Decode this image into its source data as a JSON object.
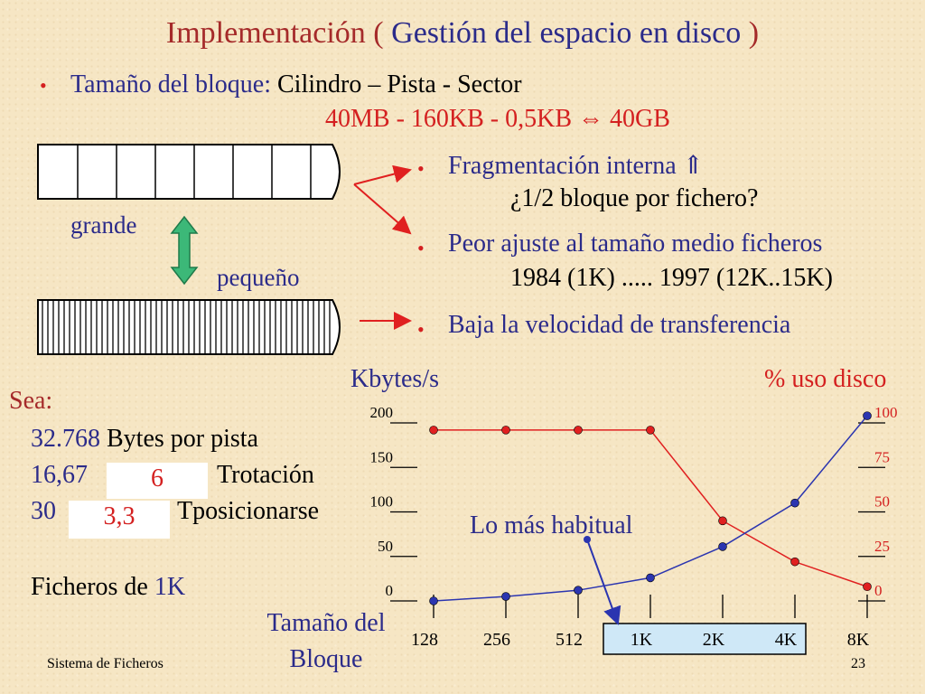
{
  "title": {
    "part1": "Implementación ( ",
    "part2": "Gestión del espacio en disco",
    "part3": " )"
  },
  "block_size": {
    "bullet": "•",
    "label": "Tamaño del bloque:",
    "value": "Cilindro – Pista - Sector",
    "sizes": "40MB - 160KB - 0,5KB ⇔ 40GB"
  },
  "diagram": {
    "big_label": "grande",
    "small_label": "pequeño"
  },
  "effects": [
    {
      "bullet": "•",
      "text": "Fragmentación interna ⇑",
      "sub": "¿1/2 bloque por fichero?"
    },
    {
      "bullet": "•",
      "text": "Peor ajuste al tamaño medio ficheros",
      "sub": "1984 (1K) ..... 1997 (12K..15K)"
    },
    {
      "bullet": "•",
      "text": "Baja la velocidad de transferencia",
      "sub": ""
    }
  ],
  "sea": {
    "heading": "Sea:",
    "line1_num": "32.768",
    "line1_text": " Bytes por pista",
    "line2_num": "16,67",
    "line2_box": "6",
    "line2_text": "Trotación",
    "line3_num": "30",
    "line3_box": "3,3",
    "line3_text": "Tposicionarse",
    "files_label": "Ficheros de ",
    "files_value": "1K"
  },
  "chart_data": {
    "type": "line",
    "categories": [
      "128",
      "256",
      "512",
      "1K",
      "2K",
      "4K",
      "8K"
    ],
    "xlabel": "Tamaño del Bloque",
    "ylabel_left": "Kbytes/s",
    "ylabel_right": "% uso disco",
    "ylim_left": [
      0,
      200
    ],
    "ylim_right": [
      0,
      100
    ],
    "yticks_left": [
      "0",
      "50",
      "100",
      "150",
      "200"
    ],
    "yticks_right": [
      "0",
      "25",
      "50",
      "75",
      "100"
    ],
    "series": [
      {
        "axis": "right",
        "color": "#e02020",
        "values": [
          96,
          96,
          96,
          96,
          45,
          22,
          8
        ]
      },
      {
        "axis": "left",
        "color": "#2b35b0",
        "values": [
          0,
          5,
          12,
          26,
          61,
          110,
          208
        ]
      }
    ],
    "annotation": "Lo más habitual",
    "highlight_categories": [
      "1K",
      "2K",
      "4K"
    ]
  },
  "footer": {
    "left": "Sistema de Ficheros",
    "page": "23"
  },
  "colors": {
    "background": "#f6e6c4",
    "title_dark": "#a52a2a",
    "navy": "#2b2b8a",
    "red": "#d42020",
    "arrow_green": "#3cb878"
  }
}
